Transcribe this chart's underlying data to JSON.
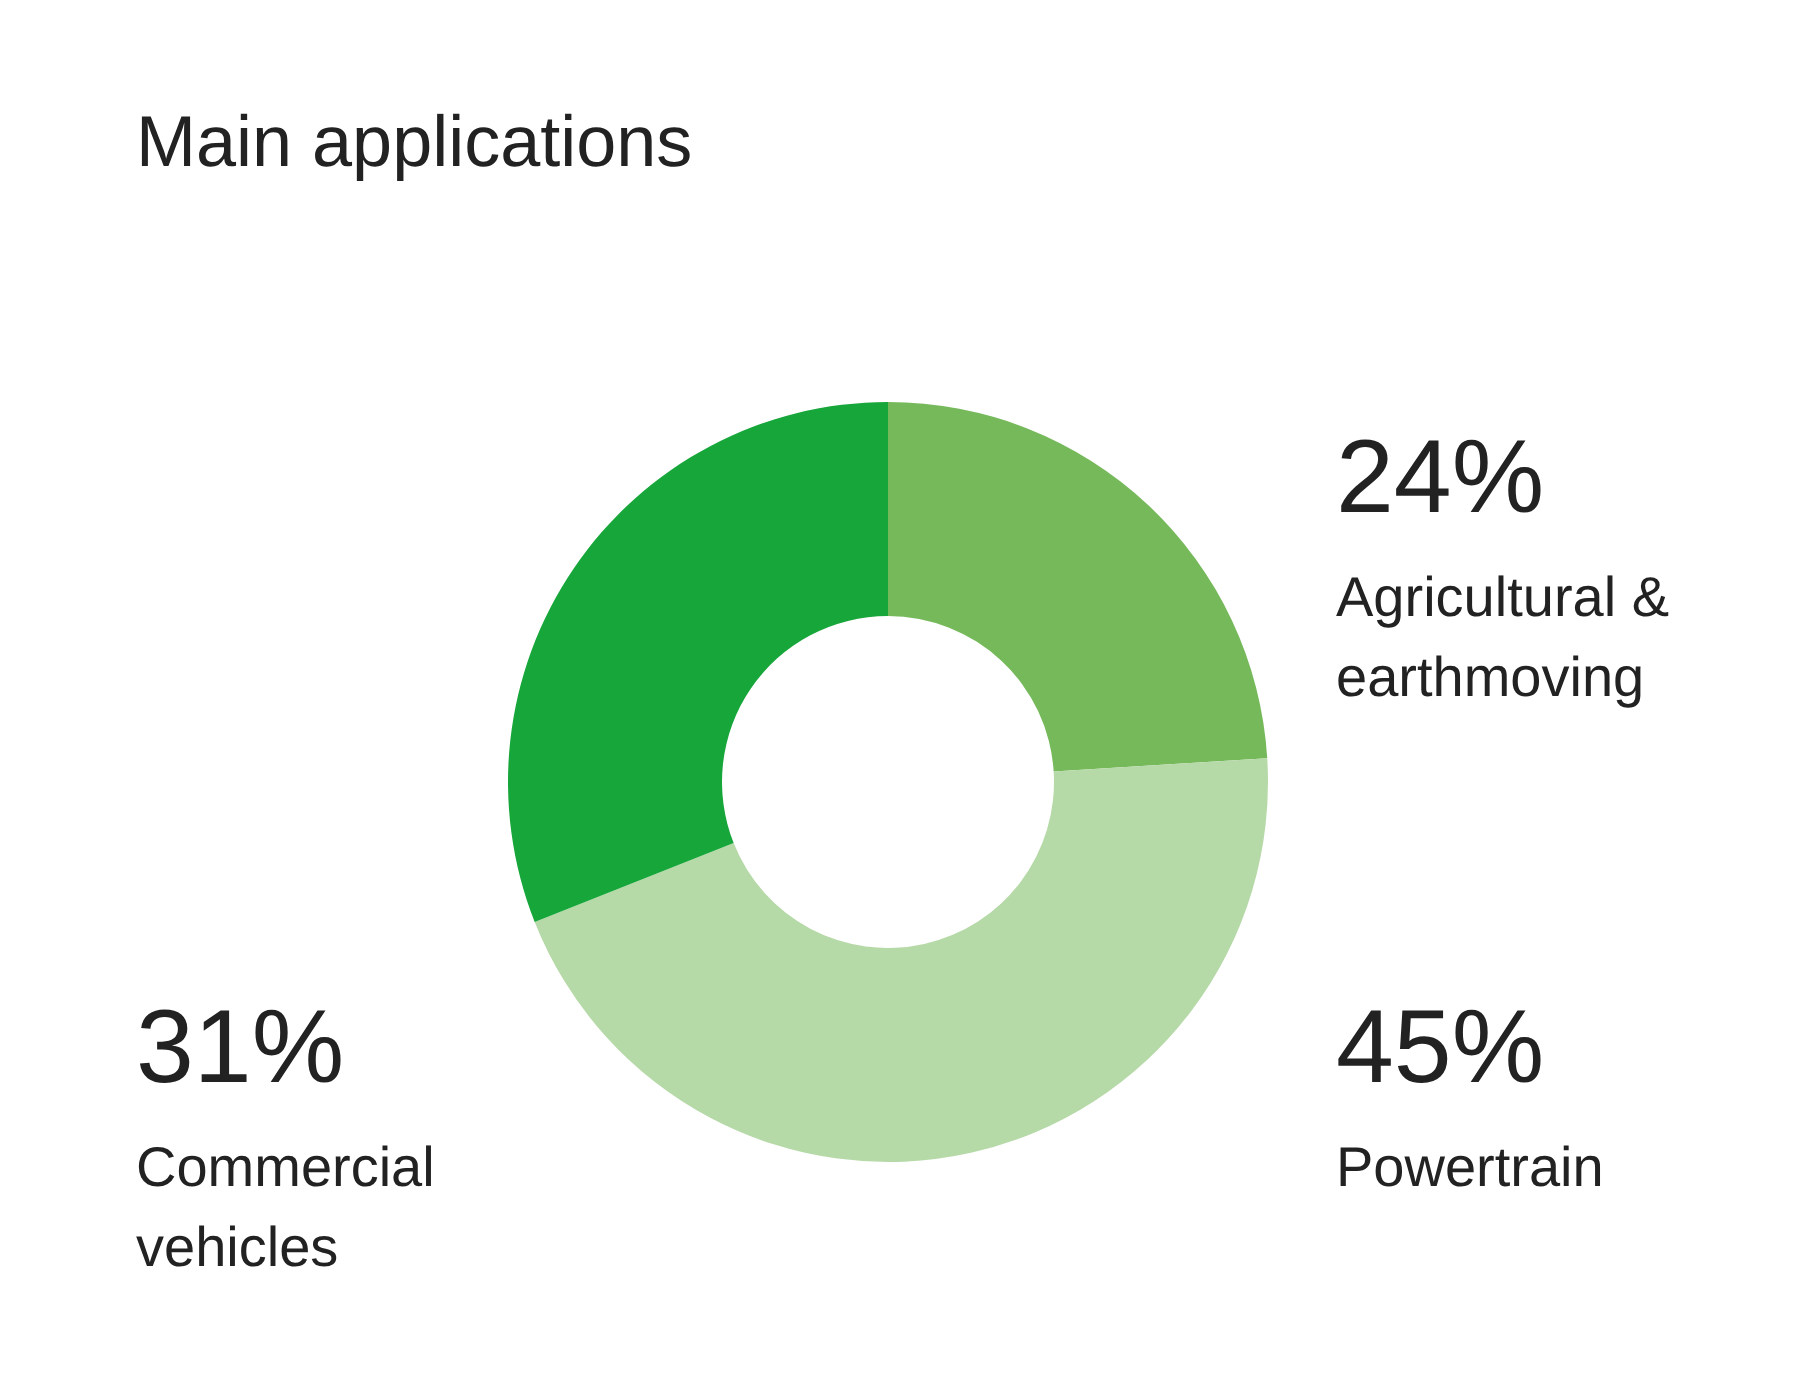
{
  "chart_data": {
    "type": "donut",
    "title": "Main applications",
    "categories": [
      "Agricultural & earthmoving",
      "Powertrain",
      "Commercial vehicles"
    ],
    "values": [
      24,
      45,
      31
    ],
    "value_labels": [
      "24%",
      "45%",
      "31%"
    ],
    "colors": [
      "#76b95b",
      "#b6d9a8",
      "#16a63a"
    ]
  }
}
